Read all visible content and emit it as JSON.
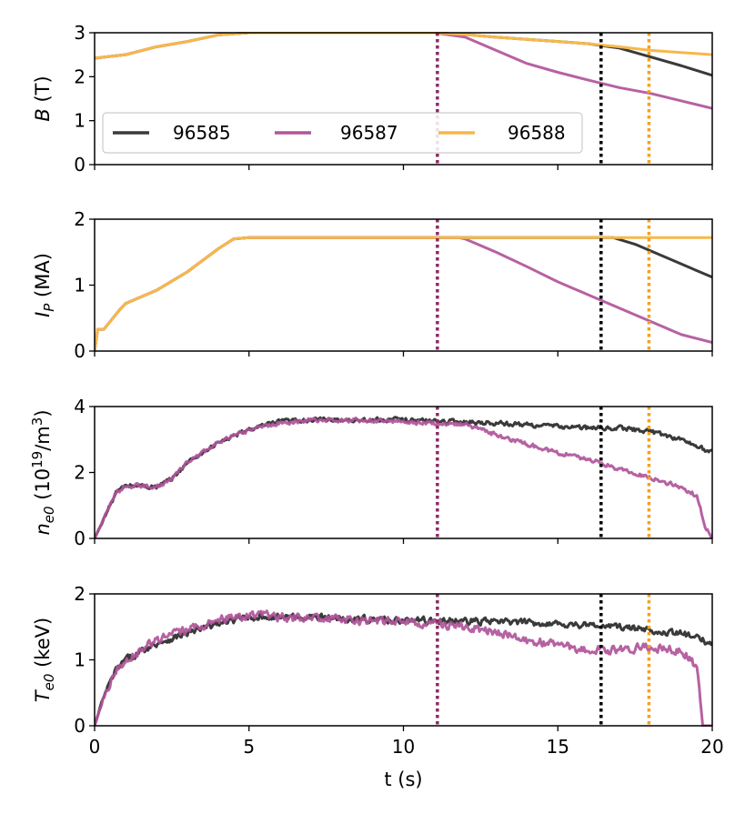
{
  "chart_data": {
    "type": "line",
    "xlabel": "t (s)",
    "xlim": [
      0,
      20
    ],
    "xticks": [
      0,
      5,
      10,
      15,
      20
    ],
    "xtick_labels": [
      "0",
      "5",
      "10",
      "15",
      "20"
    ],
    "legend": {
      "location": "lower-left of top panel",
      "entries": [
        {
          "name": "96585",
          "color": "#3a3a3a"
        },
        {
          "name": "96587",
          "color": "#b0559a"
        },
        {
          "name": "96588",
          "color": "#f7b84a"
        }
      ]
    },
    "vlines": [
      {
        "x": 11.1,
        "color": "#8b2a62",
        "style": "dotted"
      },
      {
        "x": 16.4,
        "color": "#000000",
        "style": "dotted"
      },
      {
        "x": 17.95,
        "color": "#f7a01a",
        "style": "dotted"
      }
    ],
    "panels": [
      {
        "id": "B",
        "ylabel": "B (T)",
        "ylabel_main": "B",
        "ylabel_rest": " (T)",
        "ylim": [
          0,
          3
        ],
        "yticks": [
          0,
          1,
          2,
          3
        ],
        "ytick_labels": [
          "0",
          "1",
          "2",
          "3"
        ],
        "series": [
          {
            "name": "96585",
            "color": "#3a3a3a",
            "noise": 0,
            "points": [
              [
                0,
                2.42
              ],
              [
                1,
                2.5
              ],
              [
                2,
                2.68
              ],
              [
                3,
                2.8
              ],
              [
                4,
                2.95
              ],
              [
                5,
                3.0
              ],
              [
                10,
                3.0
              ],
              [
                11,
                3.0
              ],
              [
                12,
                2.96
              ],
              [
                13,
                2.9
              ],
              [
                14,
                2.85
              ],
              [
                15,
                2.8
              ],
              [
                16,
                2.75
              ],
              [
                17,
                2.65
              ],
              [
                18,
                2.45
              ],
              [
                19,
                2.25
              ],
              [
                20,
                2.03
              ]
            ]
          },
          {
            "name": "96587",
            "color": "#b0559a",
            "noise": 0,
            "points": [
              [
                0,
                2.42
              ],
              [
                1,
                2.5
              ],
              [
                2,
                2.68
              ],
              [
                3,
                2.8
              ],
              [
                4,
                2.95
              ],
              [
                5,
                3.0
              ],
              [
                10,
                3.0
              ],
              [
                11,
                3.0
              ],
              [
                12,
                2.9
              ],
              [
                13,
                2.6
              ],
              [
                14,
                2.3
              ],
              [
                15,
                2.1
              ],
              [
                16,
                1.92
              ],
              [
                17,
                1.75
              ],
              [
                18,
                1.62
              ],
              [
                19,
                1.45
              ],
              [
                20,
                1.28
              ]
            ]
          },
          {
            "name": "96588",
            "color": "#f7b84a",
            "noise": 0,
            "points": [
              [
                0,
                2.42
              ],
              [
                1,
                2.5
              ],
              [
                2,
                2.68
              ],
              [
                3,
                2.8
              ],
              [
                4,
                2.95
              ],
              [
                5,
                3.0
              ],
              [
                10,
                3.0
              ],
              [
                11,
                3.0
              ],
              [
                12,
                2.96
              ],
              [
                13,
                2.9
              ],
              [
                14,
                2.85
              ],
              [
                15,
                2.8
              ],
              [
                16,
                2.75
              ],
              [
                17,
                2.68
              ],
              [
                18,
                2.6
              ],
              [
                19,
                2.55
              ],
              [
                20,
                2.5
              ]
            ]
          }
        ]
      },
      {
        "id": "IP",
        "ylabel": "I_P (MA)",
        "ylabel_main": "I",
        "ylabel_sub": "P",
        "ylabel_rest": " (MA)",
        "ylim": [
          0,
          2
        ],
        "yticks": [
          0,
          1,
          2
        ],
        "ytick_labels": [
          "0",
          "1",
          "2"
        ],
        "series": [
          {
            "name": "96585",
            "color": "#3a3a3a",
            "noise": 0,
            "points": [
              [
                0,
                0.0
              ],
              [
                0.1,
                0.33
              ],
              [
                0.3,
                0.33
              ],
              [
                0.8,
                0.62
              ],
              [
                1,
                0.72
              ],
              [
                1.5,
                0.82
              ],
              [
                2,
                0.92
              ],
              [
                3,
                1.2
              ],
              [
                4,
                1.55
              ],
              [
                4.5,
                1.7
              ],
              [
                5,
                1.72
              ],
              [
                16.8,
                1.72
              ],
              [
                17.5,
                1.62
              ],
              [
                18,
                1.52
              ],
              [
                19,
                1.32
              ],
              [
                20,
                1.12
              ]
            ]
          },
          {
            "name": "96587",
            "color": "#b0559a",
            "noise": 0,
            "points": [
              [
                0,
                0.0
              ],
              [
                0.1,
                0.33
              ],
              [
                0.3,
                0.33
              ],
              [
                0.8,
                0.62
              ],
              [
                1,
                0.72
              ],
              [
                1.5,
                0.82
              ],
              [
                2,
                0.92
              ],
              [
                3,
                1.2
              ],
              [
                4,
                1.55
              ],
              [
                4.5,
                1.7
              ],
              [
                5,
                1.72
              ],
              [
                11.8,
                1.72
              ],
              [
                12,
                1.7
              ],
              [
                13,
                1.5
              ],
              [
                14,
                1.28
              ],
              [
                15,
                1.05
              ],
              [
                16,
                0.85
              ],
              [
                17,
                0.65
              ],
              [
                18,
                0.45
              ],
              [
                19,
                0.25
              ],
              [
                20,
                0.13
              ]
            ]
          },
          {
            "name": "96588",
            "color": "#f7b84a",
            "noise": 0,
            "points": [
              [
                0,
                0.0
              ],
              [
                0.1,
                0.33
              ],
              [
                0.3,
                0.33
              ],
              [
                0.8,
                0.62
              ],
              [
                1,
                0.72
              ],
              [
                1.5,
                0.82
              ],
              [
                2,
                0.92
              ],
              [
                3,
                1.2
              ],
              [
                4,
                1.55
              ],
              [
                4.5,
                1.7
              ],
              [
                5,
                1.72
              ],
              [
                20,
                1.72
              ]
            ]
          }
        ]
      },
      {
        "id": "ne0",
        "ylabel": "n_e0 (10^19/m^3)",
        "ylabel_main": "n",
        "ylabel_sub": "e0",
        "ylabel_rest": " (10",
        "ylabel_sup": "19",
        "ylabel_rest2": "/m",
        "ylabel_sup2": "3",
        "ylabel_end": ")",
        "ylim": [
          0,
          4
        ],
        "yticks": [
          0,
          2,
          4
        ],
        "ytick_labels": [
          "0",
          "2",
          "4"
        ],
        "series": [
          {
            "name": "96585",
            "color": "#3a3a3a",
            "noise": 0.09,
            "points": [
              [
                0,
                0.0
              ],
              [
                0.3,
                0.6
              ],
              [
                0.7,
                1.4
              ],
              [
                1,
                1.6
              ],
              [
                1.5,
                1.6
              ],
              [
                2,
                1.55
              ],
              [
                2.5,
                1.8
              ],
              [
                3,
                2.3
              ],
              [
                4,
                2.9
              ],
              [
                5,
                3.3
              ],
              [
                6,
                3.55
              ],
              [
                7,
                3.6
              ],
              [
                10,
                3.6
              ],
              [
                13,
                3.5
              ],
              [
                15,
                3.4
              ],
              [
                16,
                3.35
              ],
              [
                17,
                3.35
              ],
              [
                18,
                3.25
              ],
              [
                19,
                3.0
              ],
              [
                20,
                2.6
              ]
            ]
          },
          {
            "name": "96587",
            "color": "#b0559a",
            "noise": 0.09,
            "points": [
              [
                0,
                0.0
              ],
              [
                0.3,
                0.6
              ],
              [
                0.7,
                1.4
              ],
              [
                1,
                1.6
              ],
              [
                1.5,
                1.6
              ],
              [
                2,
                1.55
              ],
              [
                2.5,
                1.8
              ],
              [
                3,
                2.3
              ],
              [
                4,
                2.9
              ],
              [
                5,
                3.3
              ],
              [
                6,
                3.5
              ],
              [
                7,
                3.6
              ],
              [
                10,
                3.55
              ],
              [
                12,
                3.45
              ],
              [
                13,
                3.15
              ],
              [
                14,
                2.85
              ],
              [
                15,
                2.6
              ],
              [
                16,
                2.4
              ],
              [
                17,
                2.1
              ],
              [
                18,
                1.85
              ],
              [
                19,
                1.55
              ],
              [
                19.5,
                1.3
              ],
              [
                19.8,
                0.3
              ],
              [
                20,
                0.0
              ]
            ]
          }
        ]
      },
      {
        "id": "Te0",
        "ylabel": "T_e0 (keV)",
        "ylabel_main": "T",
        "ylabel_sub": "e0",
        "ylabel_rest": " (keV)",
        "ylim": [
          0,
          2
        ],
        "yticks": [
          0,
          1,
          2
        ],
        "ytick_labels": [
          "0",
          "1",
          "2"
        ],
        "series": [
          {
            "name": "96585",
            "color": "#3a3a3a",
            "noise": 0.07,
            "points": [
              [
                0,
                0.0
              ],
              [
                0.3,
                0.45
              ],
              [
                0.7,
                0.85
              ],
              [
                1,
                1.0
              ],
              [
                2,
                1.25
              ],
              [
                3,
                1.4
              ],
              [
                4,
                1.55
              ],
              [
                5,
                1.65
              ],
              [
                7,
                1.65
              ],
              [
                10,
                1.6
              ],
              [
                13,
                1.58
              ],
              [
                15,
                1.55
              ],
              [
                17,
                1.5
              ],
              [
                19,
                1.4
              ],
              [
                20,
                1.25
              ]
            ]
          },
          {
            "name": "96587",
            "color": "#b0559a",
            "noise": 0.09,
            "points": [
              [
                0,
                0.0
              ],
              [
                0.3,
                0.45
              ],
              [
                0.7,
                0.85
              ],
              [
                1,
                1.0
              ],
              [
                2,
                1.3
              ],
              [
                3,
                1.45
              ],
              [
                4,
                1.6
              ],
              [
                5,
                1.68
              ],
              [
                7,
                1.62
              ],
              [
                10,
                1.58
              ],
              [
                12,
                1.5
              ],
              [
                13,
                1.4
              ],
              [
                14,
                1.3
              ],
              [
                15,
                1.22
              ],
              [
                16,
                1.15
              ],
              [
                17,
                1.15
              ],
              [
                18,
                1.2
              ],
              [
                19,
                1.15
              ],
              [
                19.5,
                0.9
              ],
              [
                19.7,
                0.0
              ],
              [
                20,
                0.0
              ]
            ]
          }
        ]
      }
    ]
  }
}
